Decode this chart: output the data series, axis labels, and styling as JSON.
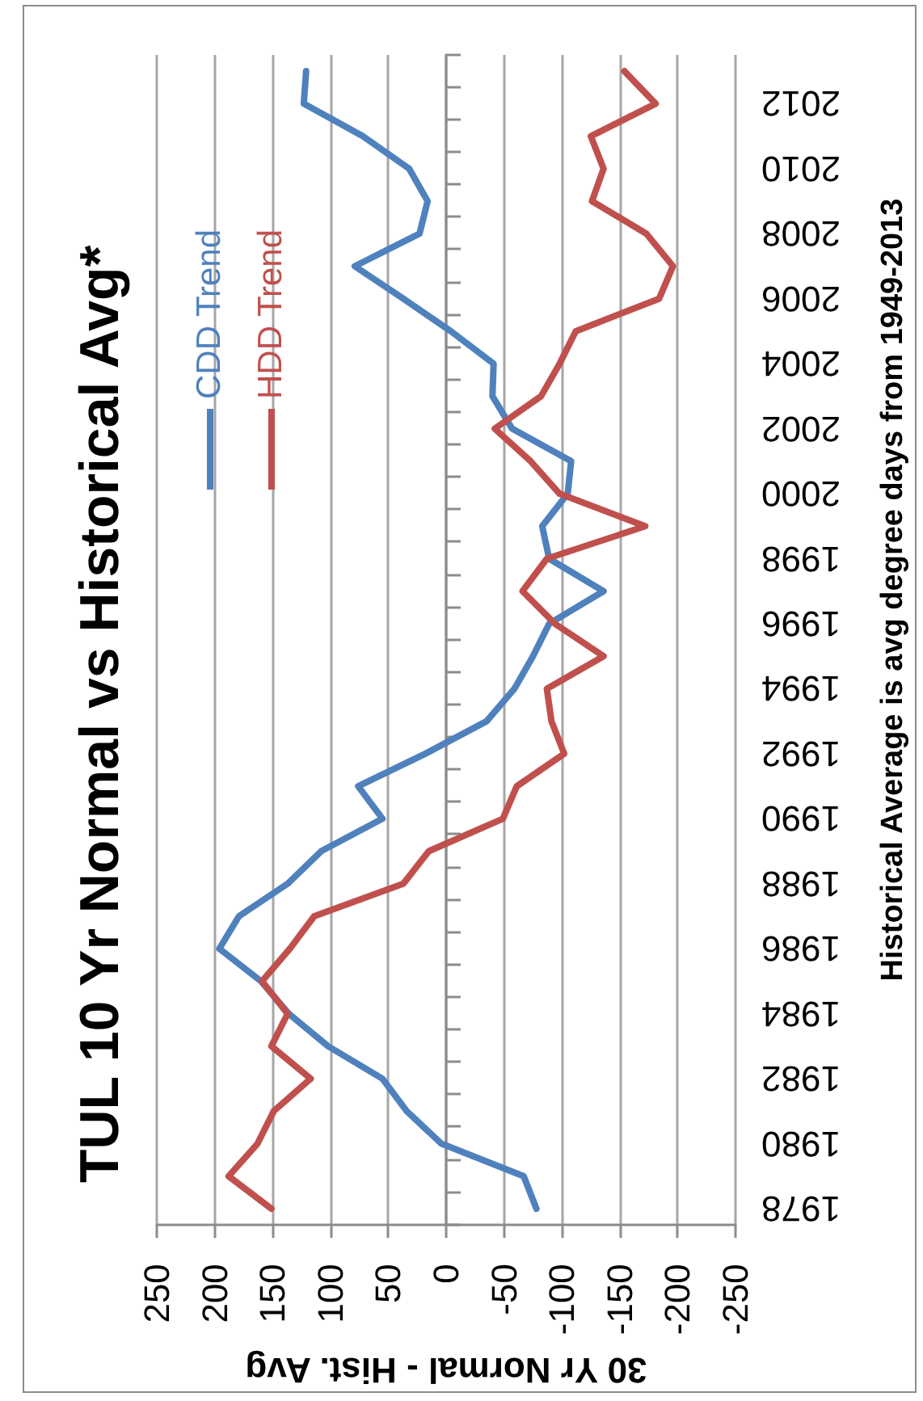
{
  "chart_data": {
    "type": "line",
    "orientation": "horizontal",
    "title": "TUL 10 Yr Normal vs Historical Avg*",
    "xlabel": "30 Yr Normal - Hist. Avg",
    "annotations": [
      "Historical Average is avg degree days from 1949-2013"
    ],
    "categories": [
      null,
      "2012",
      null,
      "2010",
      null,
      "2008",
      null,
      "2006",
      null,
      "2004",
      null,
      "2002",
      null,
      "2000",
      null,
      "1998",
      null,
      "1996",
      null,
      "1994",
      null,
      "1992",
      null,
      "1990",
      null,
      "1988",
      null,
      "1986",
      null,
      "1984",
      null,
      "1982",
      null,
      "1980",
      null,
      "1978"
    ],
    "series": [
      {
        "name": "CDD Trend",
        "color": "#4f81bd",
        "values": [
          121,
          123,
          72,
          32,
          16,
          23,
          79,
          37,
          -4,
          -41,
          -40,
          -57,
          -108,
          -105,
          -83,
          -89,
          -136,
          -89,
          -75,
          -59,
          -35,
          18,
          76,
          55,
          108,
          137,
          179,
          196,
          160,
          136,
          102,
          55,
          34,
          4,
          -67,
          -78
        ]
      },
      {
        "name": "HDD Trend",
        "color": "#c0504d",
        "values": [
          -154,
          -181,
          -125,
          -136,
          -126,
          -173,
          -196,
          -184,
          -112,
          -98,
          -82,
          -42,
          -73,
          -98,
          -172,
          -87,
          -66,
          -94,
          -136,
          -87,
          -91,
          -102,
          -61,
          -49,
          15,
          37,
          114,
          135,
          159,
          137,
          151,
          117,
          149,
          163,
          188,
          151
        ]
      }
    ],
    "xlim": [
      250,
      -250
    ],
    "xticks": [
      250,
      200,
      150,
      100,
      50,
      0,
      -50,
      -100,
      -150,
      -200,
      -250
    ],
    "grid": "x",
    "legend": "top left",
    "marker": "none",
    "line_style": "solid"
  }
}
